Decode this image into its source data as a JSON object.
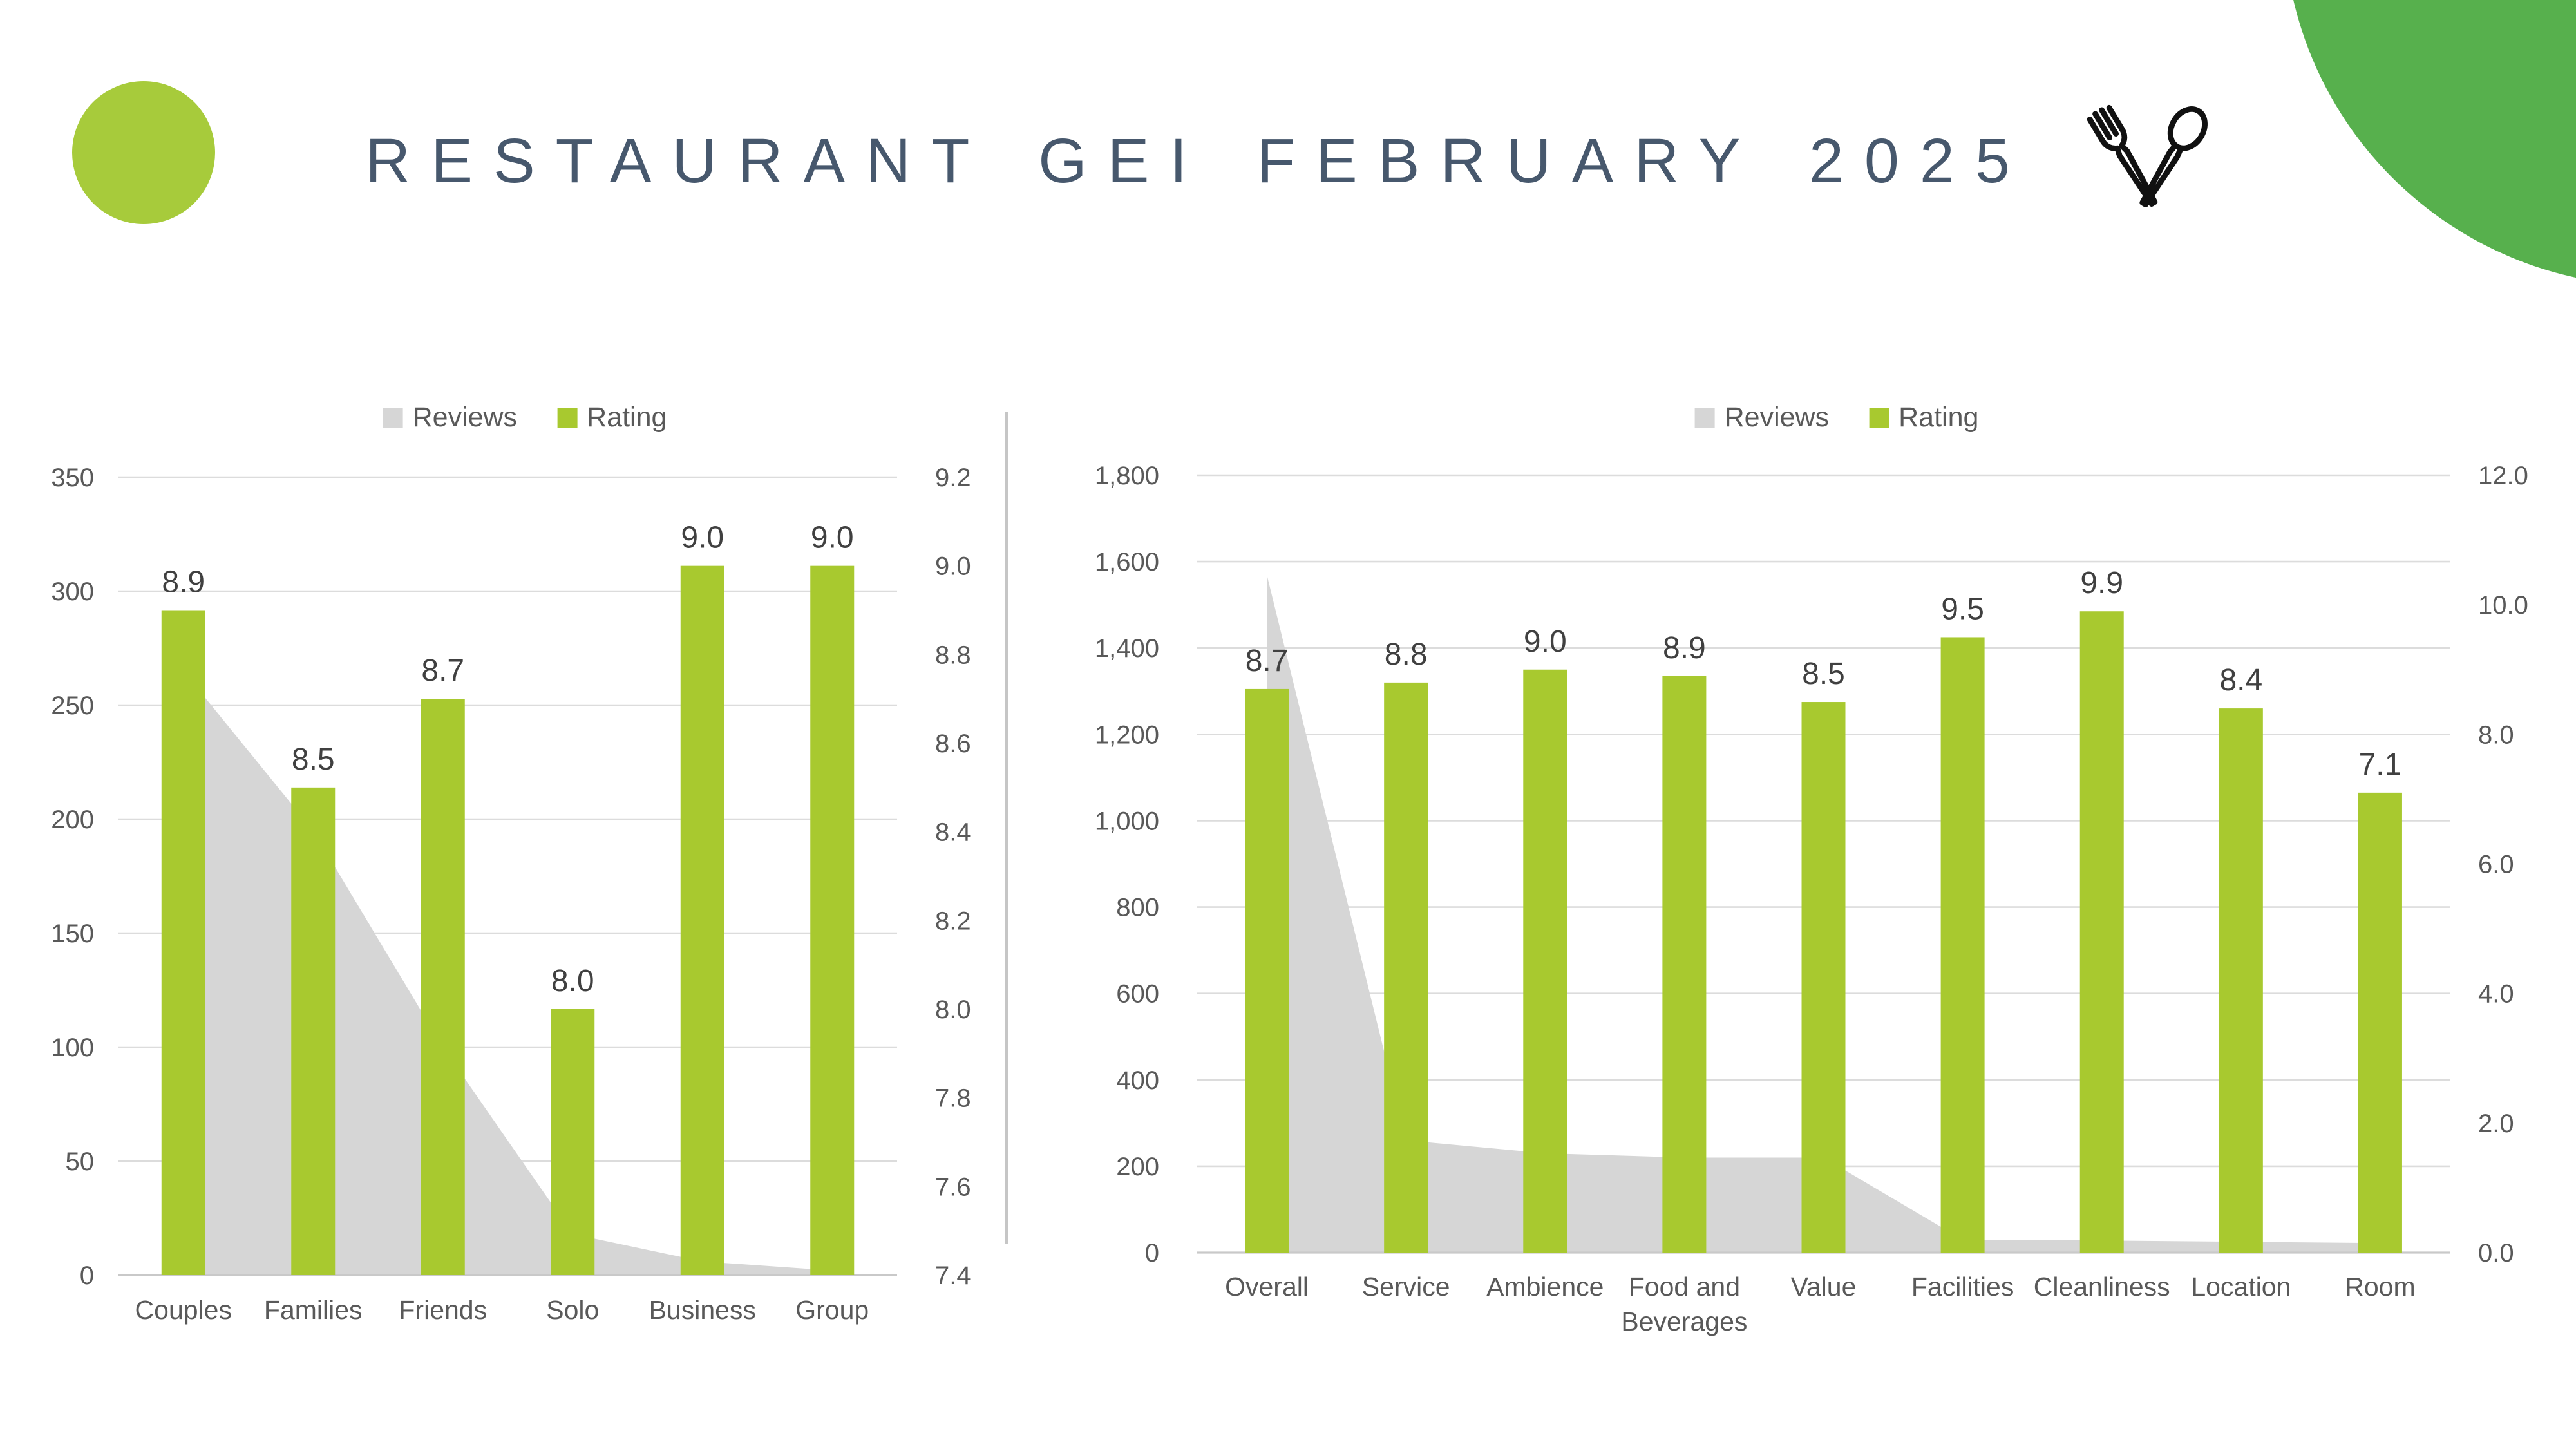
{
  "header": {
    "title": "RESTAURANT GEI FEBRUARY 2025"
  },
  "icons": {
    "utensils": "fork-and-spoon-crossed"
  },
  "colors": {
    "title_text": "#47586d",
    "rating_green": "#a8c92f",
    "reviews_gray": "#d6d6d6",
    "circle_green": "#a7cb3b",
    "corner_green": "#57b04d",
    "gridline": "#dcdcdc",
    "axis_line": "#c9c9c9",
    "tick_text": "#595959",
    "category_text": "#595959",
    "legend_text": "#595959",
    "data_label_text": "#404040",
    "icon_stroke": "#111111"
  },
  "chart_data": [
    {
      "type": "combo-area-bar",
      "title": "Rating and reviews by traveller type",
      "legend": [
        "Reviews",
        "Rating"
      ],
      "legend_position": "top-center",
      "grid": true,
      "categories": [
        "Couples",
        "Families",
        "Friends",
        "Solo",
        "Business",
        "Group"
      ],
      "series": [
        {
          "name": "Reviews",
          "type": "area",
          "axis": "left",
          "values": [
            265,
            195,
            100,
            18,
            6,
            2
          ]
        },
        {
          "name": "Rating",
          "type": "bar",
          "axis": "right",
          "values": [
            8.9,
            8.5,
            8.7,
            8.0,
            9.0,
            9.0
          ],
          "data_labels": [
            "8.9",
            "8.5",
            "8.7",
            "8.0",
            "9.0",
            "9.0"
          ]
        }
      ],
      "left_axis": {
        "min": 0,
        "max": 350,
        "step": 50,
        "ticks": [
          "0",
          "50",
          "100",
          "150",
          "200",
          "250",
          "300",
          "350"
        ]
      },
      "right_axis": {
        "min": 7.4,
        "max": 9.2,
        "step": 0.2,
        "ticks": [
          "7.4",
          "7.6",
          "7.8",
          "8.0",
          "8.2",
          "8.4",
          "8.6",
          "8.8",
          "9.0",
          "9.2"
        ]
      }
    },
    {
      "type": "combo-area-bar",
      "title": "Rating and reviews by category",
      "legend": [
        "Reviews",
        "Rating"
      ],
      "legend_position": "top-center",
      "grid": true,
      "categories": [
        "Overall",
        "Service",
        "Ambience",
        "Food and\nBeverages",
        "Value",
        "Facilities",
        "Cleanliness",
        "Location",
        "Room"
      ],
      "series": [
        {
          "name": "Reviews",
          "type": "area",
          "axis": "left",
          "values": [
            1570,
            260,
            230,
            220,
            220,
            30,
            28,
            25,
            22
          ]
        },
        {
          "name": "Rating",
          "type": "bar",
          "axis": "right",
          "values": [
            8.7,
            8.8,
            9.0,
            8.9,
            8.5,
            9.5,
            9.9,
            8.4,
            7.1
          ],
          "data_labels": [
            "8.7",
            "8.8",
            "9.0",
            "8.9",
            "8.5",
            "9.5",
            "9.9",
            "8.4",
            "7.1"
          ]
        }
      ],
      "left_axis": {
        "min": 0,
        "max": 1800,
        "step": 200,
        "ticks": [
          "0",
          "200",
          "400",
          "600",
          "800",
          "1,000",
          "1,200",
          "1,400",
          "1,600",
          "1,800"
        ]
      },
      "right_axis": {
        "min": 0,
        "max": 12,
        "step": 2,
        "ticks": [
          "0.0",
          "2.0",
          "4.0",
          "6.0",
          "8.0",
          "10.0",
          "12.0"
        ]
      }
    }
  ]
}
